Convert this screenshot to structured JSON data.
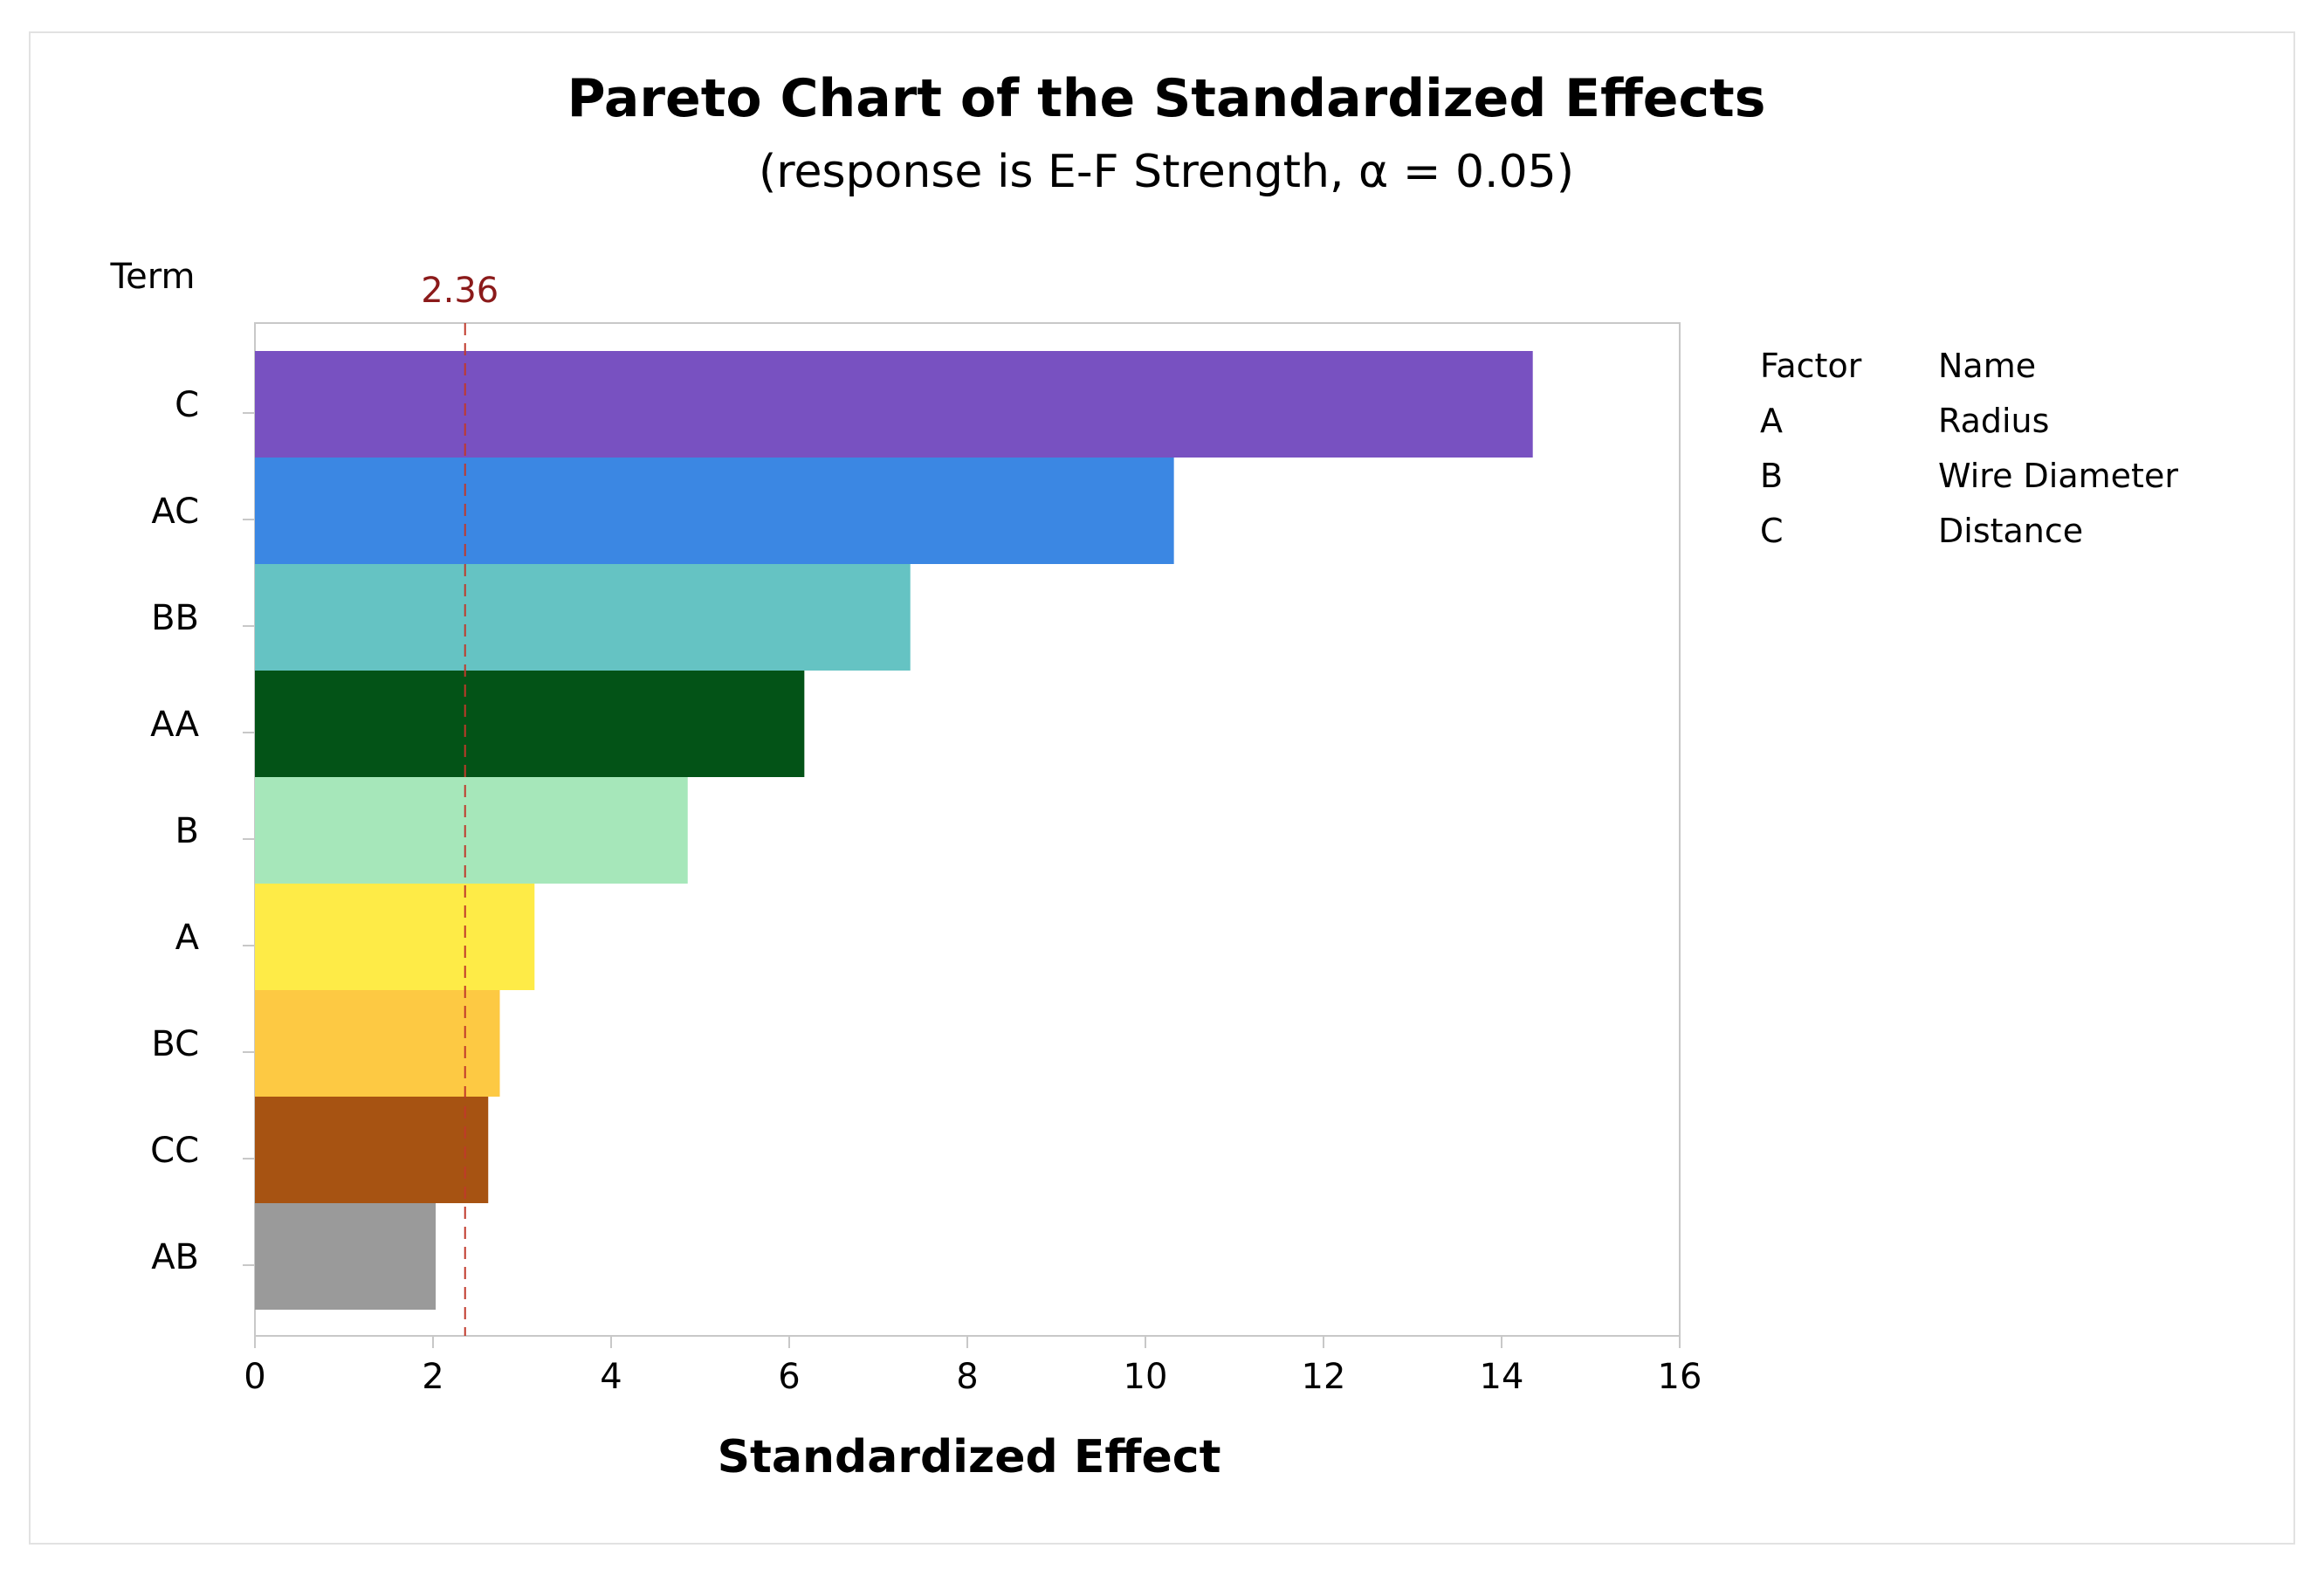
{
  "colors": {
    "reference_line": "#c0392b",
    "reference_label": "#8b1a1a",
    "axis": "#c8c8c8",
    "frame": "#e2e2e2"
  },
  "chart_data": {
    "type": "bar",
    "orientation": "horizontal",
    "title": "Pareto Chart of the Standardized Effects",
    "subtitle": "(response is E-F Strength, α = 0.05)",
    "xlabel": "Standardized Effect",
    "ylabel": "Term",
    "xlim": [
      0,
      16
    ],
    "xticks": [
      0,
      2,
      4,
      6,
      8,
      10,
      12,
      14,
      16
    ],
    "grid": false,
    "categories": [
      "C",
      "AC",
      "BB",
      "AA",
      "B",
      "A",
      "BC",
      "CC",
      "AB"
    ],
    "values": [
      14.35,
      10.32,
      7.36,
      6.17,
      4.86,
      3.14,
      2.75,
      2.62,
      2.03
    ],
    "bar_colors": [
      "#7851c1",
      "#3b87e3",
      "#65c3c3",
      "#035317",
      "#a6e7ba",
      "#feeb47",
      "#fdc943",
      "#a75312",
      "#9a9a9a"
    ],
    "reference_line": {
      "value": 2.36,
      "label": "2.36"
    },
    "legend": {
      "placement": "right",
      "headers": [
        "Factor",
        "Name"
      ],
      "rows": [
        {
          "factor": "A",
          "name": "Radius"
        },
        {
          "factor": "B",
          "name": "Wire Diameter"
        },
        {
          "factor": "C",
          "name": "Distance"
        }
      ]
    }
  }
}
